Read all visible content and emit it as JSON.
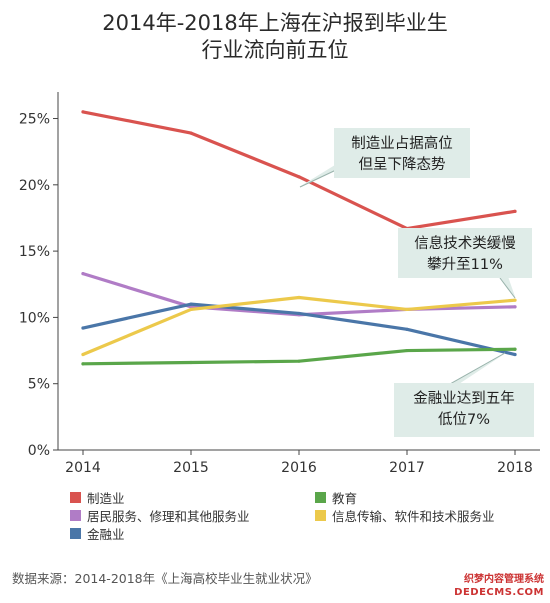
{
  "title_lines": [
    "2014年-2018年上海在沪报到毕业生",
    "行业流向前五位"
  ],
  "source": "数据来源：2014-2018年《上海高校毕业生就业状况》",
  "watermark": {
    "line1": "织梦内容管理系统",
    "line2": "DEDECMS.COM"
  },
  "chart_data": {
    "type": "line",
    "x": [
      "2014",
      "2015",
      "2016",
      "2017",
      "2018"
    ],
    "ylim": [
      0,
      27
    ],
    "yticks": [
      0,
      5,
      10,
      15,
      20,
      25
    ],
    "ytick_labels": [
      "0%",
      "5%",
      "10%",
      "15%",
      "20%",
      "25%"
    ],
    "grid": false,
    "series": [
      {
        "name": "制造业",
        "color": "#d9534f",
        "values": [
          25.5,
          23.9,
          20.6,
          16.7,
          18.0
        ]
      },
      {
        "name": "居民服务、修理和其他服务业",
        "color": "#b07cc6",
        "values": [
          13.3,
          10.8,
          10.2,
          10.6,
          10.8
        ]
      },
      {
        "name": "金融业",
        "color": "#4a76a8",
        "values": [
          9.2,
          11.0,
          10.3,
          9.1,
          7.2
        ]
      },
      {
        "name": "教育",
        "color": "#5aa64a",
        "values": [
          6.5,
          6.6,
          6.7,
          7.5,
          7.6
        ]
      },
      {
        "name": "信息传输、软件和技术服务业",
        "color": "#ecc94b",
        "values": [
          7.2,
          10.6,
          11.5,
          10.6,
          11.3
        ]
      }
    ],
    "annotations": [
      {
        "series": "制造业",
        "lines": [
          "制造业占据高位",
          "但呈下降态势"
        ]
      },
      {
        "series": "信息传输、软件和技术服务业",
        "lines": [
          "信息技术类缓慢",
          "攀升至11%"
        ]
      },
      {
        "series": "金融业",
        "lines": [
          "金融业达到五年",
          "低位7%"
        ]
      }
    ]
  }
}
